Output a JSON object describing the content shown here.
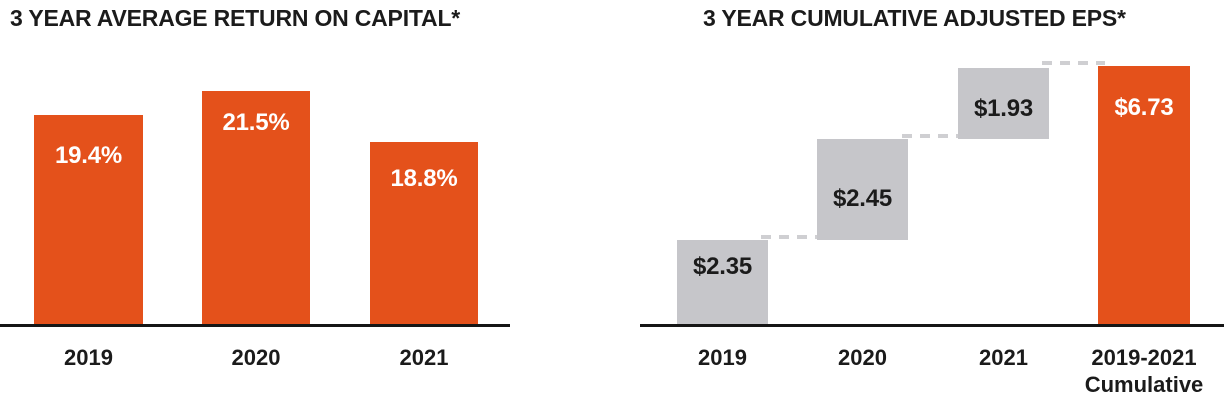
{
  "page": {
    "background": "#FFFFFF",
    "text_color": "#1B1B1B",
    "axis_color": "#161616"
  },
  "chart_data": [
    {
      "type": "bar",
      "title": "3 YEAR AVERAGE RETURN ON CAPITAL*",
      "categories": [
        "2019",
        "2020",
        "2021"
      ],
      "values": [
        19.4,
        21.5,
        18.8
      ],
      "value_labels": [
        "19.4%",
        "21.5%",
        "18.8%"
      ],
      "unit": "%",
      "xlabel": "",
      "ylabel": "",
      "grid": false,
      "legend_position": "none",
      "bar_color": "#E4511B",
      "value_label_color": "#FFFFFF"
    },
    {
      "type": "waterfall",
      "title": "3 YEAR CUMULATIVE ADJUSTED EPS*",
      "categories": [
        "2019",
        "2020",
        "2021",
        "2019-2021"
      ],
      "category_sublabels": [
        "",
        "",
        "",
        "Cumulative"
      ],
      "values": [
        2.35,
        2.45,
        1.93,
        6.73
      ],
      "value_labels": [
        "$2.35",
        "$2.45",
        "$1.93",
        "$6.73"
      ],
      "unit": "$",
      "xlabel": "",
      "ylabel": "",
      "grid": false,
      "legend_position": "none",
      "segment_colors": [
        "#C6C6CA",
        "#C6C6CA",
        "#C6C6CA",
        "#E4511B"
      ],
      "value_label_colors": [
        "#1B1B1B",
        "#1B1B1B",
        "#1B1B1B",
        "#FFFFFF"
      ],
      "connector_color": "#CFCFD2"
    }
  ]
}
